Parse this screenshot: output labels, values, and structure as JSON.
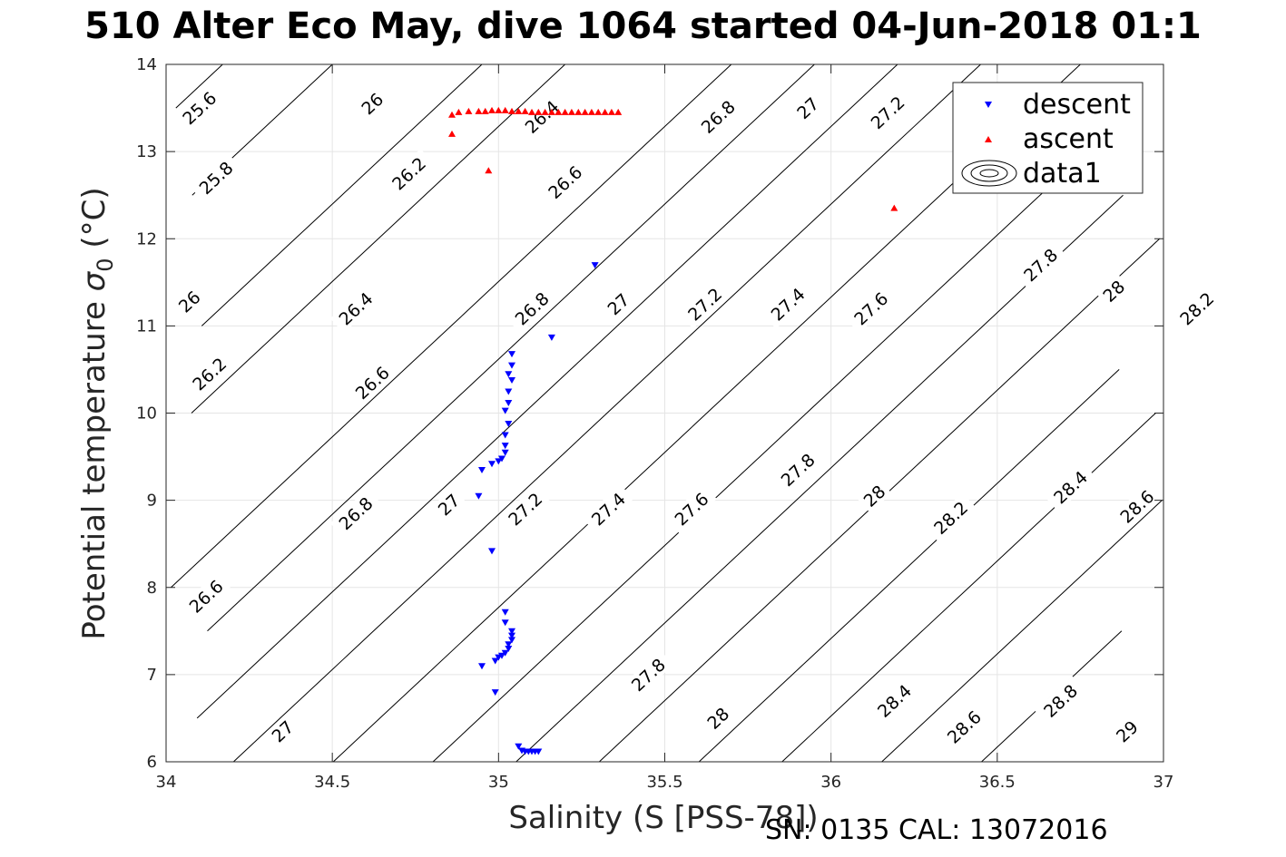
{
  "title": "510 Alter Eco May, dive 1064 started 04-Jun-2018 01:1",
  "footer": "SN: 0135  CAL: 13072016",
  "colors": {
    "descent": "#0000ff",
    "ascent": "#ff0000",
    "contour": "#000000",
    "grid": "#e5e5e5"
  },
  "chart_data": {
    "type": "scatter",
    "xlabel": "Salinity (S [PSS-78])",
    "ylabel_main": "Potential temperature ",
    "ylabel_sigma": "σ",
    "ylabel_sub": "0",
    "ylabel_unit": " (°C)",
    "xlim": [
      34,
      37
    ],
    "ylim": [
      6,
      14
    ],
    "xticks": [
      34,
      34.5,
      35,
      35.5,
      36,
      36.5,
      37
    ],
    "xtick_labels": [
      "34",
      "34.5",
      "35",
      "35.5",
      "36",
      "36.5",
      "37"
    ],
    "yticks": [
      6,
      7,
      8,
      9,
      10,
      11,
      12,
      13,
      14
    ],
    "ytick_labels": [
      "6",
      "7",
      "8",
      "9",
      "10",
      "11",
      "12",
      "13",
      "14"
    ],
    "grid": true,
    "legend_position": "top-right",
    "legend": [
      {
        "label": "descent",
        "marker": "triangle-down",
        "color": "#0000ff"
      },
      {
        "label": "ascent",
        "marker": "triangle-up",
        "color": "#ff0000"
      },
      {
        "label": "data1",
        "marker": "contour",
        "color": "#000000"
      }
    ],
    "contour_slope_dT_dS": 3.56,
    "contour_lines": [
      {
        "sigma": 25.6,
        "s_at_t14": 34.17
      },
      {
        "sigma": 25.8,
        "s_at_t14": 34.05,
        "extra_label": true
      },
      {
        "sigma": 26.0,
        "s_at_t14": 34.5
      },
      {
        "sigma": 26.2,
        "s_at_t14": 34.0
      },
      {
        "sigma": 26.4,
        "s_at_t14": 34.95
      },
      {
        "sigma": 26.6,
        "s_at_t14": 35.2
      },
      {
        "sigma": 26.8,
        "s_at_t14": 35.7
      },
      {
        "sigma": 27.0,
        "s_at_t14": 35.95
      },
      {
        "sigma": 27.2,
        "s_at_t14": 36.2
      },
      {
        "sigma": 27.4,
        "s_at_t14": 36.45
      },
      {
        "sigma": 27.6,
        "s_at_t14": 36.75
      },
      {
        "sigma": 27.8,
        "s_at_t14": 37.05
      },
      {
        "sigma": 28.0,
        "s_at_t14": 37.3
      },
      {
        "sigma": 28.2,
        "s_at_t14": 37.55
      },
      {
        "sigma": 28.4,
        "s_at_t14": 37.85
      },
      {
        "sigma": 28.6,
        "s_at_t14": 38.1
      },
      {
        "sigma": 28.8,
        "s_at_t14": 38.4
      },
      {
        "sigma": 29.0,
        "s_at_t14": 38.7
      }
    ],
    "contour_labels": [
      {
        "text": "25.6",
        "s": 34.1,
        "t": 13.5
      },
      {
        "text": "26",
        "s": 34.62,
        "t": 13.55
      },
      {
        "text": "26.4",
        "s": 35.13,
        "t": 13.4
      },
      {
        "text": "26.8",
        "s": 35.66,
        "t": 13.4
      },
      {
        "text": "27",
        "s": 35.93,
        "t": 13.5
      },
      {
        "text": "27.2",
        "s": 36.17,
        "t": 13.45
      },
      {
        "text": "25.8",
        "s": 34.15,
        "t": 12.7
      },
      {
        "text": "26.2",
        "s": 34.73,
        "t": 12.75
      },
      {
        "text": "26.6",
        "s": 35.2,
        "t": 12.65
      },
      {
        "text": "26",
        "s": 34.07,
        "t": 11.28
      },
      {
        "text": "26.4",
        "s": 34.57,
        "t": 11.2
      },
      {
        "text": "26.8",
        "s": 35.1,
        "t": 11.2
      },
      {
        "text": "27",
        "s": 35.36,
        "t": 11.25
      },
      {
        "text": "27.2",
        "s": 35.62,
        "t": 11.25
      },
      {
        "text": "27.4",
        "s": 35.87,
        "t": 11.25
      },
      {
        "text": "27.6",
        "s": 36.12,
        "t": 11.2
      },
      {
        "text": "27.8",
        "s": 36.63,
        "t": 11.7
      },
      {
        "text": "28",
        "s": 36.85,
        "t": 11.4
      },
      {
        "text": "28.2",
        "s": 37.1,
        "t": 11.2
      },
      {
        "text": "26.2",
        "s": 34.13,
        "t": 10.45
      },
      {
        "text": "26.6",
        "s": 34.62,
        "t": 10.35
      },
      {
        "text": "26.8",
        "s": 34.57,
        "t": 8.85
      },
      {
        "text": "27",
        "s": 34.85,
        "t": 8.95
      },
      {
        "text": "27.2",
        "s": 35.08,
        "t": 8.9
      },
      {
        "text": "27.4",
        "s": 35.33,
        "t": 8.9
      },
      {
        "text": "27.6",
        "s": 35.58,
        "t": 8.9
      },
      {
        "text": "27.8",
        "s": 35.9,
        "t": 9.35
      },
      {
        "text": "28",
        "s": 36.13,
        "t": 9.05
      },
      {
        "text": "28.2",
        "s": 36.36,
        "t": 8.8
      },
      {
        "text": "28.4",
        "s": 36.72,
        "t": 9.15
      },
      {
        "text": "28.6",
        "s": 36.92,
        "t": 8.93
      },
      {
        "text": "26.6",
        "s": 34.12,
        "t": 7.9
      },
      {
        "text": "27.8",
        "s": 35.45,
        "t": 7.0
      },
      {
        "text": "27",
        "s": 34.35,
        "t": 6.35
      },
      {
        "text": "28",
        "s": 35.66,
        "t": 6.5
      },
      {
        "text": "28.4",
        "s": 36.19,
        "t": 6.7
      },
      {
        "text": "28.6",
        "s": 36.4,
        "t": 6.4
      },
      {
        "text": "28.8",
        "s": 36.69,
        "t": 6.7
      },
      {
        "text": "29",
        "s": 36.89,
        "t": 6.35
      }
    ],
    "series": [
      {
        "name": "descent",
        "marker": "triangle-down",
        "points": [
          [
            35.29,
            11.7
          ],
          [
            35.16,
            10.87
          ],
          [
            35.04,
            10.68
          ],
          [
            35.04,
            10.55
          ],
          [
            35.03,
            10.45
          ],
          [
            35.04,
            10.38
          ],
          [
            35.03,
            10.25
          ],
          [
            35.03,
            10.12
          ],
          [
            35.02,
            10.03
          ],
          [
            35.03,
            9.88
          ],
          [
            35.02,
            9.75
          ],
          [
            35.02,
            9.63
          ],
          [
            35.02,
            9.55
          ],
          [
            35.01,
            9.48
          ],
          [
            35.0,
            9.45
          ],
          [
            34.98,
            9.42
          ],
          [
            34.95,
            9.35
          ],
          [
            34.94,
            9.05
          ],
          [
            34.98,
            8.42
          ],
          [
            35.02,
            7.72
          ],
          [
            35.02,
            7.6
          ],
          [
            35.04,
            7.5
          ],
          [
            35.04,
            7.45
          ],
          [
            35.04,
            7.4
          ],
          [
            35.03,
            7.35
          ],
          [
            35.03,
            7.3
          ],
          [
            35.02,
            7.25
          ],
          [
            35.01,
            7.22
          ],
          [
            35.0,
            7.2
          ],
          [
            34.99,
            7.16
          ],
          [
            34.95,
            7.1
          ],
          [
            34.99,
            6.8
          ],
          [
            35.06,
            6.18
          ],
          [
            35.07,
            6.13
          ],
          [
            35.08,
            6.12
          ],
          [
            35.09,
            6.12
          ],
          [
            35.1,
            6.12
          ],
          [
            35.11,
            6.12
          ],
          [
            35.12,
            6.12
          ]
        ]
      },
      {
        "name": "ascent",
        "marker": "triangle-up",
        "points": [
          [
            34.86,
            13.42
          ],
          [
            34.88,
            13.45
          ],
          [
            34.91,
            13.46
          ],
          [
            34.94,
            13.46
          ],
          [
            34.96,
            13.46
          ],
          [
            34.98,
            13.47
          ],
          [
            35.0,
            13.47
          ],
          [
            35.02,
            13.47
          ],
          [
            35.04,
            13.46
          ],
          [
            35.06,
            13.46
          ],
          [
            35.08,
            13.46
          ],
          [
            35.1,
            13.45
          ],
          [
            35.12,
            13.45
          ],
          [
            35.14,
            13.45
          ],
          [
            35.16,
            13.45
          ],
          [
            35.18,
            13.45
          ],
          [
            35.2,
            13.45
          ],
          [
            35.22,
            13.45
          ],
          [
            35.24,
            13.45
          ],
          [
            35.26,
            13.45
          ],
          [
            35.28,
            13.45
          ],
          [
            35.3,
            13.45
          ],
          [
            35.32,
            13.45
          ],
          [
            35.34,
            13.45
          ],
          [
            35.36,
            13.45
          ],
          [
            34.86,
            13.2
          ],
          [
            34.97,
            12.78
          ],
          [
            36.19,
            12.35
          ]
        ]
      }
    ]
  }
}
